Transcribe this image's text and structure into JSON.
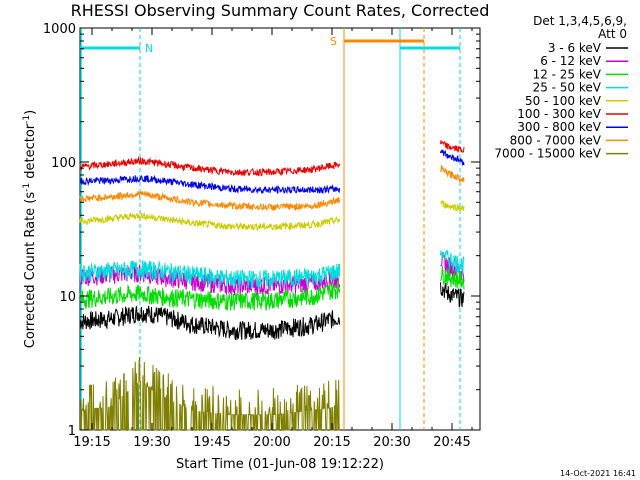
{
  "chart_data": {
    "type": "line",
    "title": "RHESSI Observing Summary Count Rates, Corrected",
    "ylabel": "Corrected Count Rate (s",
    "ylabel_sup": "-1",
    "ylabel_mid": " detector",
    "ylabel_close": ")",
    "xlabel": "Start Time (01-Jun-08 19:12:22)",
    "yscale": "log",
    "ylim": [
      1,
      1000
    ],
    "xlim": [
      "19:12",
      "20:52"
    ],
    "x_ticks": [
      "19:15",
      "19:30",
      "19:45",
      "20:00",
      "20:15",
      "20:30",
      "20:45"
    ],
    "y_ticks": [
      "1",
      "10",
      "100",
      "1000"
    ],
    "legend_header": [
      "Det 1,3,4,5,6,9,",
      "Att 0"
    ],
    "legend_position": "right",
    "data_gap": [
      "20:17",
      "20:42"
    ],
    "series": [
      {
        "name": "3 - 6 keV",
        "color": "#000000",
        "x": [
          "19:12",
          "19:20",
          "19:27",
          "19:32",
          "19:40",
          "19:50",
          "20:00",
          "20:10",
          "20:17",
          "20:42",
          "20:44",
          "20:48"
        ],
        "y": [
          6.5,
          6.8,
          7.6,
          7.2,
          6.2,
          5.6,
          5.6,
          6.1,
          7.0,
          12,
          10.5,
          9.5
        ]
      },
      {
        "name": "6 - 12 keV",
        "color": "#cc00cc",
        "x": [
          "19:12",
          "19:20",
          "19:27",
          "19:32",
          "19:40",
          "19:50",
          "20:00",
          "20:10",
          "20:17",
          "20:42",
          "20:44",
          "20:48"
        ],
        "y": [
          14,
          14.5,
          15,
          14,
          13,
          12,
          12,
          12.5,
          13.5,
          19,
          17,
          15
        ]
      },
      {
        "name": "12 - 25 keV",
        "color": "#00dd00",
        "x": [
          "19:12",
          "19:20",
          "19:27",
          "19:32",
          "19:40",
          "19:50",
          "20:00",
          "20:10",
          "20:17",
          "20:42",
          "20:44",
          "20:48"
        ],
        "y": [
          9.5,
          10,
          10.5,
          10,
          9.5,
          9.2,
          9.3,
          10,
          11.5,
          15,
          14,
          13
        ]
      },
      {
        "name": "25 - 50 keV",
        "color": "#00dddd",
        "x": [
          "19:12",
          "19:20",
          "19:27",
          "19:32",
          "19:40",
          "19:50",
          "20:00",
          "20:10",
          "20:17",
          "20:42",
          "20:44",
          "20:48"
        ],
        "y": [
          15,
          15.5,
          16,
          15.5,
          14.5,
          13.5,
          13.5,
          14,
          15.5,
          21,
          19,
          17
        ]
      },
      {
        "name": "50 - 100 keV",
        "color": "#cccc00",
        "x": [
          "19:12",
          "19:20",
          "19:27",
          "19:32",
          "19:40",
          "19:50",
          "20:00",
          "20:10",
          "20:17",
          "20:42",
          "20:44",
          "20:48"
        ],
        "y": [
          36,
          38,
          40,
          38,
          35,
          33,
          33,
          34,
          37,
          50,
          47,
          45
        ]
      },
      {
        "name": "100 - 300 keV",
        "color": "#ee0000",
        "x": [
          "19:12",
          "19:20",
          "19:27",
          "19:32",
          "19:40",
          "19:50",
          "20:00",
          "20:10",
          "20:17",
          "20:42",
          "20:44",
          "20:48"
        ],
        "y": [
          92,
          97,
          102,
          98,
          90,
          84,
          84,
          88,
          96,
          140,
          130,
          122
        ]
      },
      {
        "name": "300 - 800 keV",
        "color": "#0000ee",
        "x": [
          "19:12",
          "19:20",
          "19:27",
          "19:32",
          "19:40",
          "19:50",
          "20:00",
          "20:10",
          "20:17",
          "20:42",
          "20:44",
          "20:48"
        ],
        "y": [
          72,
          73,
          76,
          73,
          68,
          63,
          62,
          62,
          63,
          122,
          112,
          100
        ]
      },
      {
        "name": "800 - 7000 keV",
        "color": "#ff8800",
        "x": [
          "19:12",
          "19:20",
          "19:27",
          "19:32",
          "19:40",
          "19:50",
          "20:00",
          "20:10",
          "20:17",
          "20:42",
          "20:44",
          "20:48"
        ],
        "y": [
          53,
          55,
          58,
          55,
          50,
          47,
          46,
          47,
          52,
          90,
          82,
          74
        ]
      },
      {
        "name": "7000 - 15000 keV",
        "color": "#808000",
        "x": [
          "19:12",
          "19:20",
          "19:27",
          "19:32",
          "19:40",
          "19:50",
          "20:00",
          "20:10",
          "20:17"
        ],
        "y": [
          1.4,
          1.5,
          2.3,
          1.8,
          1.4,
          1.3,
          1.3,
          1.4,
          1.5
        ]
      }
    ],
    "flag_bars": [
      {
        "label": "N",
        "color": "#00dddd",
        "segments": [
          [
            "19:12",
            "19:27"
          ],
          [
            "20:32",
            "20:47"
          ]
        ],
        "boundaries": [
          [
            "19:27",
            "dashed"
          ],
          [
            "20:32",
            "solid"
          ],
          [
            "20:47",
            "dashed"
          ]
        ],
        "left_edge_line": true
      },
      {
        "label": "S",
        "color": "#ff8800",
        "segments": [
          [
            "20:18",
            "20:38"
          ]
        ],
        "boundaries": [
          [
            "20:18",
            "solid"
          ],
          [
            "20:38",
            "dashed"
          ]
        ]
      }
    ]
  },
  "footer": {
    "timestamp": "14-Oct-2021 16:41"
  }
}
